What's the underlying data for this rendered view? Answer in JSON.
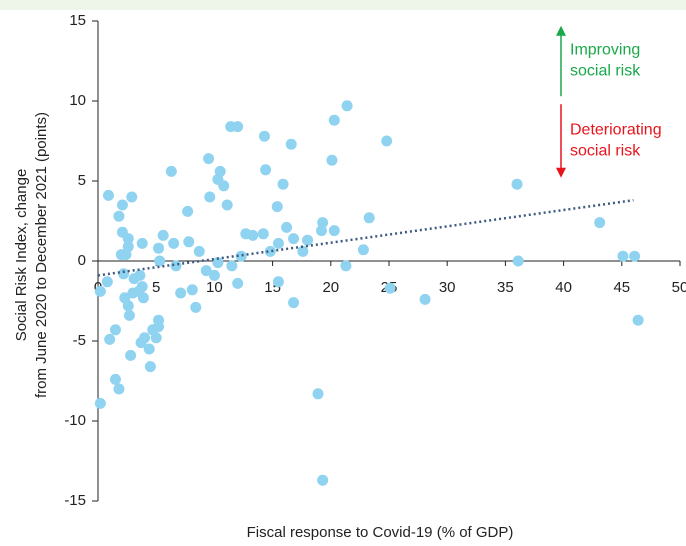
{
  "chart_data": {
    "type": "scatter",
    "xlabel": "Fiscal response to Covid-19 (% of GDP)",
    "ylabel": [
      "Social Risk Index, change",
      "from June 2020 to December 2021 (points)"
    ],
    "xlim": [
      0,
      50
    ],
    "xticks": [
      0,
      5,
      10,
      15,
      20,
      25,
      30,
      35,
      40,
      45,
      50
    ],
    "ylim": [
      -15,
      15
    ],
    "yticks": [
      -15,
      -10,
      -5,
      0,
      5,
      10,
      15
    ],
    "series": [
      {
        "color": "#8fd3f0",
        "x": [
          0.2,
          0.2,
          0.8,
          0.9,
          1.0,
          1.5,
          1.5,
          1.8,
          1.8,
          2.0,
          2.1,
          2.1,
          2.2,
          2.3,
          2.4,
          2.6,
          2.6,
          2.6,
          2.7,
          2.8,
          2.9,
          3.0,
          3.1,
          3.5,
          3.6,
          3.7,
          3.8,
          3.8,
          3.9,
          4.0,
          4.4,
          4.5,
          4.7,
          5.0,
          5.2,
          5.2,
          5.2,
          5.3,
          5.6,
          6.3,
          6.5,
          6.7,
          7.1,
          7.7,
          7.8,
          8.1,
          8.4,
          8.7,
          9.3,
          9.5,
          9.6,
          10.0,
          10.3,
          10.3,
          10.5,
          10.8,
          11.1,
          11.4,
          11.5,
          12.0,
          12.0,
          12.3,
          12.7,
          13.3,
          14.2,
          14.3,
          14.4,
          14.8,
          15.4,
          15.5,
          15.5,
          15.9,
          16.2,
          16.6,
          16.8,
          16.8,
          17.6,
          18.0,
          18.9,
          19.2,
          19.3,
          19.3,
          20.1,
          20.3,
          20.3,
          21.4,
          21.3,
          22.8,
          23.3,
          24.8,
          25.1,
          28.1,
          36.0,
          36.1,
          43.1,
          45.1,
          46.1,
          46.4
        ],
        "y": [
          -8.9,
          -1.9,
          -1.3,
          4.1,
          -4.9,
          -4.3,
          -7.4,
          -8.0,
          2.8,
          0.4,
          3.5,
          1.8,
          -0.8,
          -2.3,
          0.4,
          1.4,
          0.9,
          -2.8,
          -3.4,
          -5.9,
          4.0,
          -2.0,
          -1.1,
          -1.9,
          -0.9,
          -5.1,
          1.1,
          -1.6,
          -2.3,
          -4.8,
          -5.5,
          -6.6,
          -4.3,
          -4.8,
          0.8,
          -4.1,
          -3.7,
          0.0,
          1.6,
          5.6,
          1.1,
          -0.3,
          -2.0,
          3.1,
          1.2,
          -1.8,
          -2.9,
          0.6,
          -0.6,
          6.4,
          4.0,
          -0.9,
          -0.1,
          5.1,
          5.6,
          4.7,
          3.5,
          8.4,
          -0.3,
          8.4,
          -1.4,
          0.3,
          1.7,
          1.6,
          1.7,
          7.8,
          5.7,
          0.6,
          3.4,
          1.1,
          -1.3,
          4.8,
          2.1,
          7.3,
          1.4,
          -2.6,
          0.6,
          1.3,
          -8.3,
          1.9,
          2.4,
          -13.7,
          6.3,
          1.9,
          8.8,
          9.7,
          -0.3,
          0.7,
          2.7,
          7.5,
          -1.7,
          -2.4,
          4.8,
          0.0,
          2.4,
          0.3,
          0.3,
          -3.7
        ]
      }
    ],
    "trendline": {
      "color": "#3d5a80",
      "x": [
        0,
        46
      ],
      "y": [
        -0.9,
        3.8
      ]
    },
    "annotations": [
      {
        "lines": [
          "Improving",
          "social risk"
        ],
        "color": "#1aa84a",
        "y": [
          10.3,
          14.7
        ]
      },
      {
        "lines": [
          "Deteriorating",
          "social risk"
        ],
        "color": "#e8141c",
        "y": [
          9.8,
          5.2
        ]
      }
    ]
  }
}
